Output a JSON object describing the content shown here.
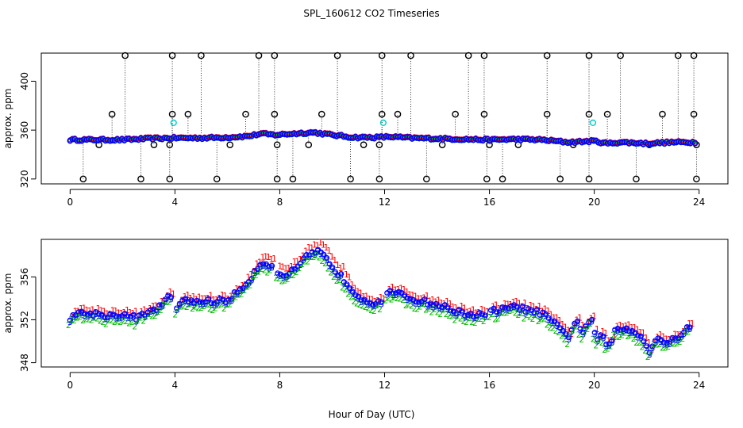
{
  "title": "SPL_160612  CO2 Timeseries",
  "xlabel": "Hour of Day (UTC)",
  "colors": {
    "series1": "#ff0000",
    "series2": "#00bb00",
    "series3": "#0000ff",
    "circle": "#0000ff",
    "spike": "#000000",
    "cyan": "#00cccc"
  },
  "chart_data": [
    {
      "type": "scatter",
      "name": "top-panel",
      "ylabel": "approx. ppm",
      "xlim": [
        -1.1,
        25.1
      ],
      "ylim": [
        316,
        423
      ],
      "xticks": [
        0,
        4,
        8,
        12,
        16,
        20,
        24
      ],
      "xtick_labels": [
        "0",
        "4",
        "8",
        "12",
        "16",
        "20",
        "24"
      ],
      "yticks": [
        320,
        360,
        400
      ],
      "ytick_labels": [
        "320",
        "360",
        "400"
      ],
      "baseline_knots": [
        [
          0.0,
          352
        ],
        [
          2.0,
          352
        ],
        [
          3.0,
          353
        ],
        [
          4.0,
          353.5
        ],
        [
          5.0,
          353.5
        ],
        [
          6.0,
          354
        ],
        [
          6.8,
          355
        ],
        [
          7.3,
          357
        ],
        [
          7.8,
          356
        ],
        [
          8.5,
          357
        ],
        [
          9.3,
          358
        ],
        [
          10.0,
          356
        ],
        [
          10.8,
          354
        ],
        [
          11.7,
          354
        ],
        [
          12.2,
          354.5
        ],
        [
          13.0,
          353.5
        ],
        [
          14.0,
          353
        ],
        [
          15.0,
          352.5
        ],
        [
          16.0,
          352
        ],
        [
          17.0,
          352.5
        ],
        [
          18.0,
          352
        ],
        [
          19.0,
          350
        ],
        [
          20.0,
          351
        ],
        [
          20.5,
          349
        ],
        [
          21.0,
          350
        ],
        [
          22.0,
          349
        ],
        [
          23.0,
          350
        ],
        [
          23.7,
          350
        ]
      ],
      "spikes_high": [
        2.1,
        3.9,
        5.0,
        7.2,
        7.8,
        10.2,
        11.9,
        13.0,
        15.2,
        15.8,
        18.2,
        19.8,
        21.0,
        23.2,
        23.8
      ],
      "spikes_mid": [
        1.6,
        3.9,
        4.5,
        6.7,
        7.8,
        9.6,
        11.9,
        12.5,
        14.7,
        15.8,
        18.2,
        19.8,
        20.5,
        22.6,
        23.8
      ],
      "spikes_low": [
        0.5,
        2.7,
        3.8,
        5.6,
        7.9,
        8.5,
        10.7,
        11.8,
        13.6,
        15.9,
        16.5,
        18.7,
        19.8,
        21.6,
        23.9
      ],
      "spikes_below": [
        1.1,
        3.2,
        3.8,
        6.1,
        7.9,
        9.1,
        11.2,
        11.8,
        14.2,
        16.0,
        17.1,
        19.2,
        22.1,
        23.9
      ],
      "cyan_points": [
        [
          3.95,
          366
        ],
        [
          11.95,
          366
        ],
        [
          19.95,
          366
        ]
      ]
    },
    {
      "type": "line",
      "name": "bottom-panel",
      "ylabel": "approx. ppm",
      "xlim": [
        -1.1,
        25.1
      ],
      "ylim": [
        347.6,
        359.5
      ],
      "xticks": [
        0,
        4,
        8,
        12,
        16,
        20,
        24
      ],
      "xtick_labels": [
        "0",
        "4",
        "8",
        "12",
        "16",
        "20",
        "24"
      ],
      "yticks": [
        348,
        352,
        356
      ],
      "ytick_labels": [
        "348",
        "352",
        "356"
      ],
      "series_markers": [
        "1",
        "2",
        "3"
      ],
      "knots": [
        [
          0.0,
          352.2
        ],
        [
          0.3,
          352.6
        ],
        [
          0.8,
          352.6
        ],
        [
          1.5,
          352.4
        ],
        [
          2.0,
          352.5
        ],
        [
          2.5,
          352.2
        ],
        [
          3.0,
          352.6
        ],
        [
          3.5,
          353.4
        ],
        [
          3.8,
          354.2
        ],
        [
          3.9,
          353.6
        ],
        [
          4.1,
          353.0
        ],
        [
          4.2,
          353.8
        ],
        [
          5.0,
          353.7
        ],
        [
          6.0,
          353.8
        ],
        [
          6.4,
          354.6
        ],
        [
          6.8,
          355.6
        ],
        [
          7.3,
          357.4
        ],
        [
          7.6,
          357.2
        ],
        [
          7.8,
          356.6
        ],
        [
          8.0,
          356.0
        ],
        [
          8.6,
          356.6
        ],
        [
          9.0,
          357.8
        ],
        [
          9.5,
          358.4
        ],
        [
          10.0,
          357.0
        ],
        [
          10.5,
          355.6
        ],
        [
          11.0,
          354.2
        ],
        [
          11.5,
          353.6
        ],
        [
          11.9,
          353.8
        ],
        [
          12.1,
          354.6
        ],
        [
          12.5,
          354.4
        ],
        [
          13.0,
          354.0
        ],
        [
          14.0,
          353.4
        ],
        [
          15.0,
          352.6
        ],
        [
          15.8,
          352.4
        ],
        [
          16.1,
          352.8
        ],
        [
          17.0,
          353.2
        ],
        [
          18.0,
          352.6
        ],
        [
          18.5,
          351.6
        ],
        [
          19.0,
          350.4
        ],
        [
          19.3,
          352.0
        ],
        [
          19.6,
          350.8
        ],
        [
          19.9,
          352.2
        ],
        [
          20.1,
          349.8
        ],
        [
          20.3,
          350.6
        ],
        [
          20.6,
          349.4
        ],
        [
          20.8,
          351.0
        ],
        [
          21.2,
          351.2
        ],
        [
          21.8,
          350.6
        ],
        [
          22.1,
          349.0
        ],
        [
          22.4,
          350.4
        ],
        [
          22.8,
          349.8
        ],
        [
          23.2,
          350.4
        ],
        [
          23.4,
          351.0
        ],
        [
          23.7,
          351.2
        ]
      ],
      "breaks": [
        3.95,
        7.85,
        11.95,
        15.95
      ]
    }
  ]
}
